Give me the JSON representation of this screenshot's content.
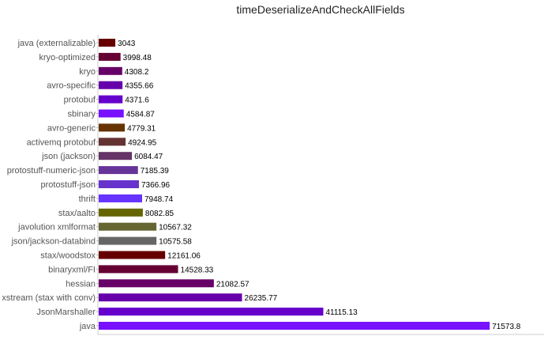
{
  "chart_data": {
    "type": "bar",
    "orientation": "horizontal",
    "title": "timeDeserializeAndCheckAllFields",
    "xlabel": "",
    "ylabel": "",
    "xlim": [
      0,
      74000
    ],
    "grid": false,
    "categories": [
      "java (externalizable)",
      "kryo-optimized",
      "kryo",
      "avro-specific",
      "protobuf",
      "sbinary",
      "avro-generic",
      "activemq protobuf",
      "json (jackson)",
      "protostuff-numeric-json",
      "protostuff-json",
      "thrift",
      "stax/aalto",
      "javolution xmlformat",
      "json/jackson-databind",
      "stax/woodstox",
      "binaryxml/FI",
      "hessian",
      "xstream (stax with conv)",
      "JsonMarshaller",
      "java"
    ],
    "values": [
      3043,
      3998.48,
      4308.2,
      4355.66,
      4371.6,
      4584.87,
      4779.31,
      4924.95,
      6084.47,
      7185.39,
      7366.96,
      7948.74,
      8082.85,
      10567.32,
      10575.58,
      12161.06,
      14528.33,
      21082.57,
      26235.77,
      41115.13,
      71573.8
    ],
    "value_labels": [
      "3043",
      "3998.48",
      "4308.2",
      "4355.66",
      "4371.6",
      "4584.87",
      "4779.31",
      "4924.95",
      "6084.47",
      "7185.39",
      "7366.96",
      "7948.74",
      "8082.85",
      "10567.32",
      "10575.58",
      "12161.06",
      "14528.33",
      "21082.57",
      "26235.77",
      "41115.13",
      "71573.8"
    ],
    "colors": [
      "#660000",
      "#660033",
      "#660066",
      "#6600aa",
      "#6600cc",
      "#7711ff",
      "#663300",
      "#663333",
      "#663366",
      "#663399",
      "#6633cc",
      "#6633ff",
      "#666600",
      "#666633",
      "#666666",
      "#660000",
      "#660033",
      "#660066",
      "#6600aa",
      "#6600cc",
      "#7711ff"
    ]
  }
}
